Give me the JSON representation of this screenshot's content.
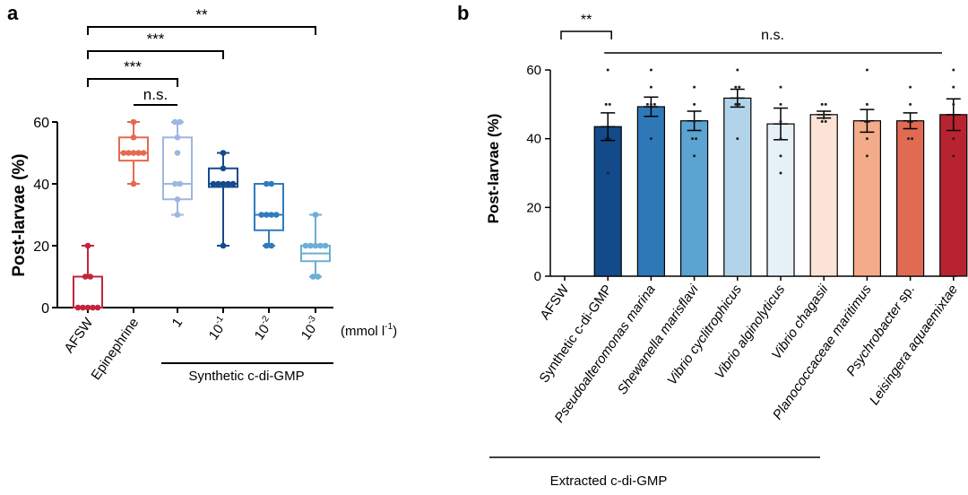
{
  "chart_data": [
    {
      "panel": "a",
      "type": "box",
      "title": "",
      "ylabel": "Post-larvae (%)",
      "ylim": [
        0,
        60
      ],
      "yticks": [
        "0",
        "20",
        "40",
        "60"
      ],
      "categories": [
        {
          "label": "AFSW",
          "color": "#c0263a"
        },
        {
          "label": "Epinephrine",
          "color": "#e46a50"
        },
        {
          "label": "1",
          "color": "#9fb6e0"
        },
        {
          "label": "10",
          "exp": "-1",
          "color": "#134a8a"
        },
        {
          "label": "10",
          "exp": "-2",
          "color": "#2f7bbd"
        },
        {
          "label": "10",
          "exp": "-3",
          "color": "#6caed6"
        }
      ],
      "boxes": [
        {
          "min": 0,
          "q1": 0,
          "median": 0,
          "q3": 10,
          "max": 20,
          "points": [
            0,
            0,
            0,
            0,
            0,
            10,
            10,
            20
          ]
        },
        {
          "min": 40,
          "q1": 47.5,
          "median": 50,
          "q3": 55,
          "max": 60,
          "points": [
            40,
            50,
            50,
            50,
            50,
            50,
            55,
            60
          ]
        },
        {
          "min": 30,
          "q1": 35,
          "median": 40,
          "q3": 55,
          "max": 60,
          "points": [
            30,
            35,
            40,
            40,
            50,
            55,
            60,
            60
          ]
        },
        {
          "min": 20,
          "q1": 39,
          "median": 40,
          "q3": 45,
          "max": 50,
          "points": [
            20,
            40,
            40,
            40,
            40,
            40,
            45,
            50
          ]
        },
        {
          "min": 20,
          "q1": 25,
          "median": 30,
          "q3": 40,
          "max": 40,
          "points": [
            20,
            20,
            30,
            30,
            30,
            30,
            40,
            40
          ]
        },
        {
          "min": 10,
          "q1": 15,
          "median": 17.5,
          "q3": 20,
          "max": 30,
          "points": [
            10,
            10,
            20,
            20,
            20,
            20,
            20,
            30
          ]
        }
      ],
      "unit_label": "(mmol l",
      "unit_exp": "-1",
      "unit_close": ")",
      "group_label": "Synthetic c-di-GMP",
      "significance": [
        {
          "from": 0,
          "to": 5,
          "label": "**"
        },
        {
          "from": 0,
          "to": 3,
          "label": "***"
        },
        {
          "from": 0,
          "to": 2,
          "label": "***"
        },
        {
          "from": 1,
          "to": 2,
          "label": "n.s."
        }
      ]
    },
    {
      "panel": "b",
      "type": "bar",
      "title": "",
      "ylabel": "Post-larvae (%)",
      "ylim": [
        0,
        60
      ],
      "yticks": [
        "0",
        "20",
        "40",
        "60"
      ],
      "categories": [
        {
          "label": "AFSW",
          "italic": false,
          "color": "#ffffff"
        },
        {
          "label": "Synthetic c-di-GMP",
          "italic": false,
          "color": "#134a8a"
        },
        {
          "label": "Pseudoalteromonas marina",
          "italic": true,
          "color": "#2e78b7"
        },
        {
          "label": "Shewanella marisflavi",
          "italic": true,
          "color": "#5ba3d0"
        },
        {
          "label": "Vibrio cyclitrophicus",
          "italic": true,
          "color": "#b2d4ea"
        },
        {
          "label": "Vibrio alginolyticus",
          "italic": true,
          "color": "#e6f0f7"
        },
        {
          "label": "Vibrio chagasii",
          "italic": true,
          "color": "#fde3d6"
        },
        {
          "label": "Planococcaceae maritimus",
          "italic": true,
          "color": "#f4ab89"
        },
        {
          "label": "Psychrobacter",
          "label_suffix": " sp.",
          "italic": true,
          "color": "#e06b52"
        },
        {
          "label": "Leisingera aquaemixtae",
          "italic": true,
          "color": "#b82332"
        }
      ],
      "values": [
        0,
        43.5,
        49.3,
        45.2,
        51.8,
        44.3,
        47,
        45.2,
        45.2,
        47
      ],
      "errors": [
        0,
        4,
        2.8,
        2.8,
        2.6,
        4.6,
        1,
        3.3,
        2.3,
        4.6
      ],
      "points": [
        [],
        [
          30,
          40,
          40,
          50,
          50,
          60
        ],
        [
          40,
          50,
          50,
          50,
          55,
          60
        ],
        [
          35,
          40,
          40,
          45,
          50,
          55
        ],
        [
          40,
          50,
          50,
          55,
          55,
          60
        ],
        [
          30,
          35,
          40,
          45,
          50,
          55
        ],
        [
          45,
          45,
          46,
          47,
          50,
          50
        ],
        [
          35,
          40,
          45,
          45,
          50,
          60
        ],
        [
          40,
          40,
          45,
          45,
          50,
          55
        ],
        [
          35,
          40,
          45,
          50,
          55,
          60
        ]
      ],
      "group_label": "Extracted c-di-GMP",
      "significance": [
        {
          "label": "**"
        },
        {
          "label": "n.s."
        }
      ]
    }
  ]
}
